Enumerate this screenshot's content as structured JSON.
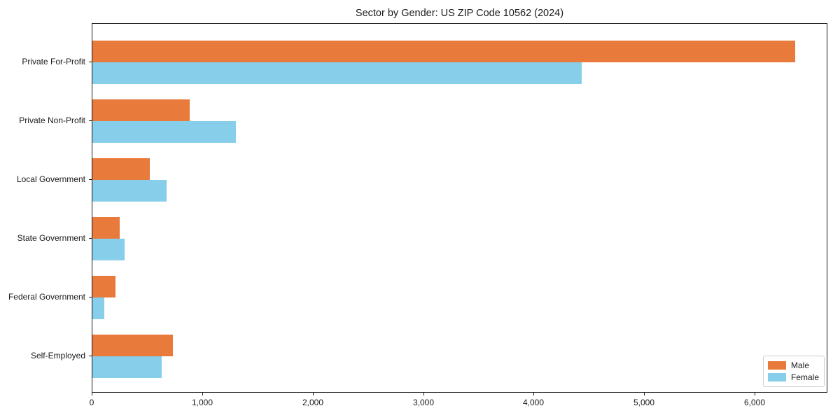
{
  "title": "Sector by Gender: US ZIP Code 10562 (2024)",
  "chart_data": {
    "type": "bar",
    "orientation": "horizontal",
    "title": "Sector by Gender: US ZIP Code 10562 (2024)",
    "categories": [
      "Private For-Profit",
      "Private Non-Profit",
      "Local Government",
      "State Government",
      "Federal Government",
      "Self-Employed"
    ],
    "series": [
      {
        "name": "Male",
        "color": "#E87A3C",
        "values": [
          6360,
          880,
          520,
          250,
          210,
          730
        ]
      },
      {
        "name": "Female",
        "color": "#87CEEB",
        "values": [
          4430,
          1300,
          670,
          290,
          110,
          630
        ]
      }
    ],
    "xlabel": "",
    "ylabel": "",
    "xlim": [
      0,
      6658
    ],
    "xticks": [
      0,
      1000,
      2000,
      3000,
      4000,
      5000,
      6000
    ],
    "xtick_labels": [
      "0",
      "1,000",
      "2,000",
      "3,000",
      "4,000",
      "5,000",
      "6,000"
    ],
    "grid": false,
    "legend": {
      "position": "lower right",
      "entries": [
        "Male",
        "Female"
      ]
    }
  }
}
